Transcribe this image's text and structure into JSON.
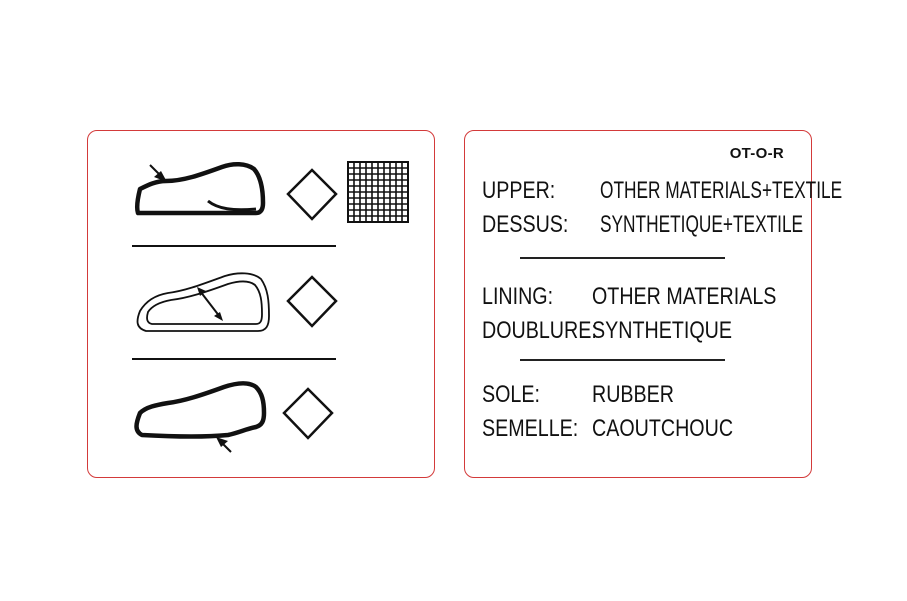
{
  "code": "OT-O-R",
  "sections": [
    {
      "rows": [
        {
          "label": "UPPER:",
          "value": "OTHER MATERIALS+TEXTILE"
        },
        {
          "label": "DESSUS:",
          "value": "SYNTHETIQUE+TEXTILE"
        }
      ]
    },
    {
      "rows": [
        {
          "label": "LINING:",
          "value": "OTHER MATERIALS"
        },
        {
          "label": "DOUBLURE:",
          "value": "SYNTHETIQUE"
        }
      ]
    },
    {
      "rows": [
        {
          "label": "SOLE:",
          "value": "RUBBER"
        },
        {
          "label": "SEMELLE:",
          "value": "CAOUTCHOUC"
        }
      ]
    }
  ],
  "icons": [
    "shoe-upper-icon",
    "diamond-other-materials-icon",
    "textile-grid-icon",
    "shoe-lining-icon",
    "diamond-other-materials-icon",
    "shoe-sole-icon",
    "diamond-other-materials-icon"
  ],
  "colors": {
    "border": "#d33a3a",
    "ink": "#111111"
  }
}
